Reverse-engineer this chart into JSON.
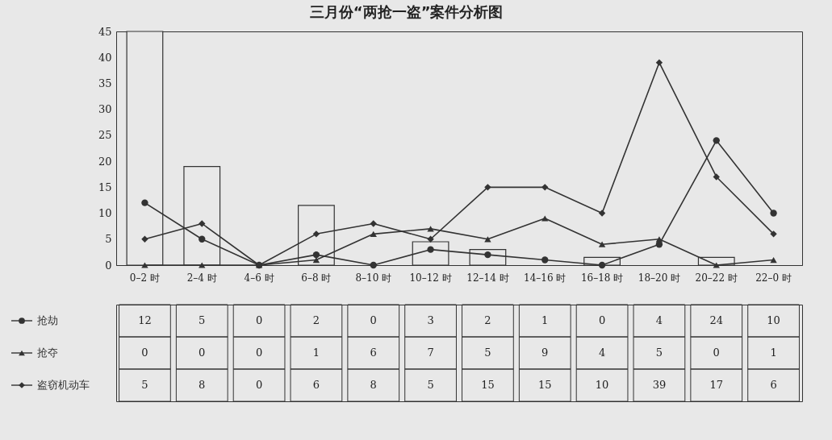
{
  "chart_data": {
    "type": "line",
    "title": "三月份“两抢一盗”案件分析图",
    "categories": [
      "0–2 时",
      "2–4 时",
      "4–6 时",
      "6–8 时",
      "8–10 时",
      "10–12 时",
      "12–14 时",
      "14–16 时",
      "16–18 时",
      "18–20 时",
      "20–22 时",
      "22–0 时"
    ],
    "series": [
      {
        "type": "bar",
        "color": "#e8e8e8",
        "values": [
          45,
          19,
          null,
          11.5,
          null,
          4.5,
          3,
          null,
          1.5,
          null,
          1.5,
          null
        ]
      },
      {
        "name": "抢劫",
        "color": "#333333",
        "marker": "circle",
        "values": [
          12,
          5,
          0,
          2,
          0,
          3,
          2,
          1,
          0,
          4,
          24,
          10
        ],
        "data_labels": true
      },
      {
        "name": "抢夺",
        "color": "#333333",
        "marker": "triangle",
        "values": [
          0,
          0,
          0,
          1,
          6,
          7,
          5,
          9,
          4,
          5,
          0,
          1
        ],
        "data_labels": true
      },
      {
        "name": "盗窃机动车",
        "color": "#333333",
        "marker": "diamond",
        "values": [
          5,
          8,
          0,
          6,
          8,
          5,
          15,
          15,
          10,
          39,
          17,
          6
        ],
        "data_labels": true
      }
    ],
    "ylim": [
      0,
      45
    ],
    "yticks": [
      0,
      5,
      10,
      15,
      20,
      25,
      30,
      35,
      40,
      45
    ],
    "grid": false,
    "legend": "bottom left"
  }
}
